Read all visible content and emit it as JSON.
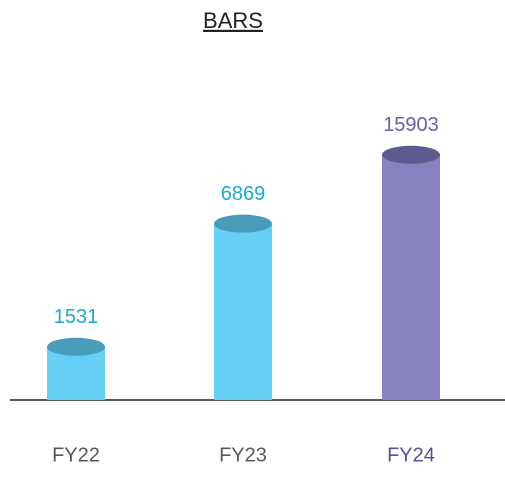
{
  "chart_data": {
    "type": "bar",
    "title": "BARS",
    "categories": [
      "FY22",
      "FY23",
      "FY24"
    ],
    "values": [
      1531,
      6869,
      15903
    ],
    "colors": [
      "#66cff5",
      "#66cff5",
      "#8781bf"
    ],
    "top_colors": [
      "#4a9dba",
      "#4a9dba",
      "#605b8f"
    ],
    "label_colors": [
      "#1aa8d8",
      "#1aa8d8",
      "#6a5fa8"
    ],
    "category_colors": [
      "#595959",
      "#595959",
      "#5a4fa3"
    ],
    "log_scale": true,
    "ylim": [
      800,
      20000
    ]
  }
}
